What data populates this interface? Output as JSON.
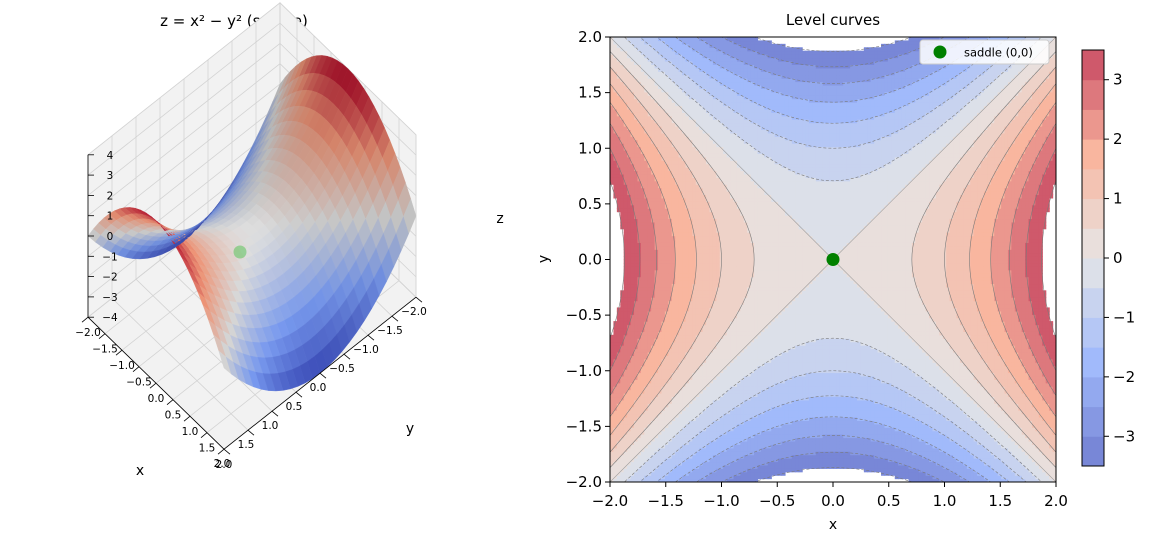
{
  "chart_data": [
    {
      "type": "surface3d",
      "title": "z = x² − y²  (saddle)",
      "function": "z = x^2 - y^2",
      "xlabel": "x",
      "ylabel": "y",
      "zlabel": "z",
      "xlim": [
        -2.0,
        2.0
      ],
      "ylim": [
        -2.0,
        2.0
      ],
      "zlim": [
        -4,
        4
      ],
      "x_ticks": [
        "−2.0",
        "−1.5",
        "−1.0",
        "−0.5",
        "0.0",
        "0.5",
        "1.0",
        "1.5",
        "2.0"
      ],
      "y_ticks": [
        "−2.0",
        "−1.5",
        "−1.0",
        "−0.5",
        "0.0",
        "0.5",
        "1.0",
        "1.5",
        "2.0"
      ],
      "z_ticks": [
        "−4",
        "−3",
        "−2",
        "−1",
        "0",
        "1",
        "2",
        "3",
        "4"
      ],
      "grid": true,
      "colormap": "coolwarm",
      "marker": {
        "x": 0,
        "y": 0,
        "z": 0,
        "color": "#3fbf3f"
      }
    },
    {
      "type": "contour",
      "title": "Level curves",
      "function": "z = x^2 - y^2",
      "xlabel": "x",
      "ylabel": "y",
      "xlim": [
        -2.0,
        2.0
      ],
      "ylim": [
        -2.0,
        2.0
      ],
      "x_ticks": [
        "−2.0",
        "−1.5",
        "−1.0",
        "−0.5",
        "0.0",
        "0.5",
        "1.0",
        "1.5",
        "2.0"
      ],
      "y_ticks": [
        "−2.0",
        "−1.5",
        "−1.0",
        "−0.5",
        "0.0",
        "0.5",
        "1.0",
        "1.5",
        "2.0"
      ],
      "levels": [
        -3.5,
        -3.0,
        -2.5,
        -2.0,
        -1.5,
        -1.0,
        -0.5,
        0.0,
        0.5,
        1.0,
        1.5,
        2.0,
        2.5,
        3.0,
        3.5
      ],
      "colorbar_range": [
        -3.5,
        3.5
      ],
      "colorbar_ticks": [
        "−3",
        "−2",
        "−1",
        "0",
        "1",
        "2",
        "3"
      ],
      "colormap": "coolwarm",
      "point": {
        "x": 0,
        "y": 0,
        "label": "saddle (0,0)",
        "color": "#008000"
      },
      "legend": {
        "entries": [
          "saddle (0,0)"
        ],
        "position": "upper right"
      }
    }
  ]
}
